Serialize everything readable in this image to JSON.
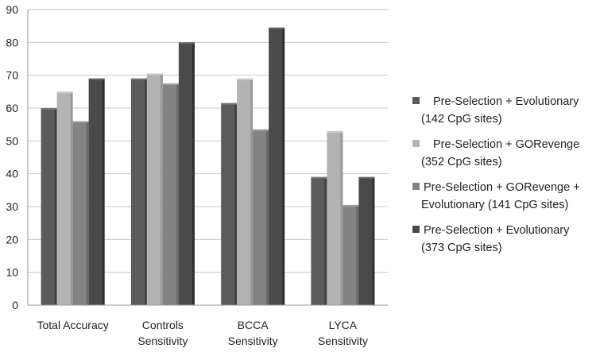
{
  "chart_data": {
    "type": "bar",
    "title": "",
    "xlabel": "",
    "ylabel": "",
    "ylim": [
      0,
      90
    ],
    "ytick_step": 10,
    "yticks": [
      "0",
      "10",
      "20",
      "30",
      "40",
      "50",
      "60",
      "70",
      "80",
      "90"
    ],
    "grid": true,
    "legend_position": "right",
    "categories": [
      [
        "Total Accuracy"
      ],
      [
        "Controls",
        "Sensitivity"
      ],
      [
        "BCCA",
        "Sensitivity"
      ],
      [
        "LYCA",
        "Sensitivity"
      ]
    ],
    "series": [
      {
        "name": [
          "Pre-Selection + Evolutionary",
          "(142 CpG sites)"
        ],
        "color": "#5b5b5b",
        "values": [
          60,
          69,
          61.5,
          39
        ]
      },
      {
        "name": [
          "Pre-Selection + GORevenge",
          "(352 CpG sites)"
        ],
        "color": "#b3b3b3",
        "values": [
          65,
          70.5,
          69,
          53
        ]
      },
      {
        "name": [
          "Pre-Selection + GORevenge +",
          "Evolutionary (141 CpG sites)"
        ],
        "color": "#838383",
        "values": [
          56,
          67.5,
          53.5,
          30.5
        ]
      },
      {
        "name": [
          "Pre-Selection + Evolutionary",
          "(373 CpG sites)"
        ],
        "color": "#4a4a4a",
        "values": [
          69,
          80,
          84.5,
          39
        ]
      }
    ]
  }
}
